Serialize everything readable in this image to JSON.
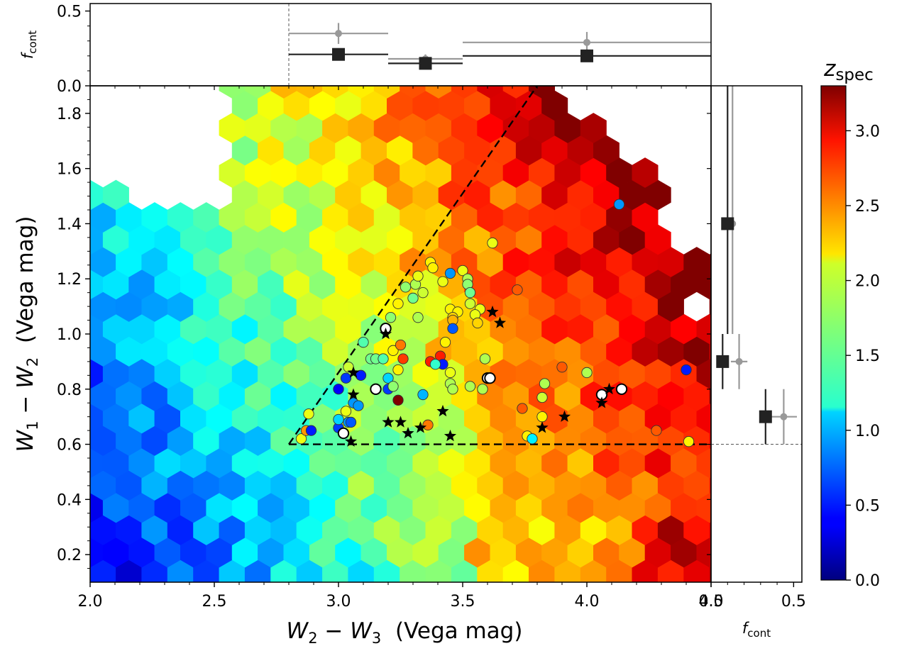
{
  "chart_data": {
    "type": "scatter",
    "main": {
      "xlabel_var_a": "W",
      "xlabel_sub_a": "2",
      "xlabel_minus": " − ",
      "xlabel_var_b": "W",
      "xlabel_sub_b": "3",
      "xlabel_unit": "  (Vega mag)",
      "ylabel_var_a": "W",
      "ylabel_sub_a": "1",
      "ylabel_minus": " − ",
      "ylabel_var_b": "W",
      "ylabel_sub_b": "2",
      "ylabel_unit": "  (Vega mag)",
      "xlim": [
        2.0,
        4.5
      ],
      "ylim": [
        0.1,
        1.9
      ],
      "xticks": [
        "2.0",
        "2.5",
        "3.0",
        "3.5",
        "4.0",
        "4.5"
      ],
      "yticks": [
        "0.2",
        "0.4",
        "0.6",
        "0.8",
        "1.0",
        "1.2",
        "1.4",
        "1.6",
        "1.8"
      ],
      "selection_wedge": [
        [
          2.8,
          0.6
        ],
        [
          4.5,
          0.6
        ],
        [
          2.8,
          0.6
        ],
        [
          3.8,
          1.9
        ]
      ],
      "hexbin_note_colorscale": "jet",
      "circles": [
        [
          2.85,
          0.62,
          2.0
        ],
        [
          2.87,
          0.65,
          2.4
        ],
        [
          2.88,
          0.71,
          2.0
        ],
        [
          2.89,
          0.65,
          0.5
        ],
        [
          3.0,
          0.66,
          0.6
        ],
        [
          3.0,
          0.69,
          1.1
        ],
        [
          3.02,
          0.64,
          -1
        ],
        [
          3.03,
          0.72,
          2.0
        ],
        [
          3.04,
          0.68,
          0.9
        ],
        [
          3.05,
          0.68,
          0.7
        ],
        [
          3.06,
          0.75,
          0.9
        ],
        [
          3.08,
          0.74,
          0.9
        ],
        [
          3.0,
          0.8,
          0.4
        ],
        [
          3.03,
          0.84,
          0.6
        ],
        [
          3.09,
          0.85,
          0.5
        ],
        [
          3.04,
          0.88,
          1.9
        ],
        [
          3.1,
          0.97,
          1.5
        ],
        [
          3.13,
          0.91,
          1.6
        ],
        [
          3.15,
          0.91,
          1.6
        ],
        [
          3.18,
          0.91,
          1.5
        ],
        [
          3.2,
          0.84,
          1.1
        ],
        [
          3.15,
          0.8,
          -1
        ],
        [
          3.2,
          0.8,
          0.6
        ],
        [
          3.22,
          0.81,
          1.7
        ],
        [
          3.19,
          1.02,
          -1
        ],
        [
          3.22,
          0.94,
          2.1
        ],
        [
          3.25,
          0.96,
          2.5
        ],
        [
          3.26,
          0.91,
          2.7
        ],
        [
          3.24,
          0.87,
          2.1
        ],
        [
          3.21,
          1.06,
          1.7
        ],
        [
          3.24,
          1.11,
          2.1
        ],
        [
          3.27,
          1.17,
          1.7
        ],
        [
          3.3,
          1.13,
          1.6
        ],
        [
          3.32,
          1.06,
          1.8
        ],
        [
          3.31,
          1.18,
          1.8
        ],
        [
          3.32,
          1.21,
          2.0
        ],
        [
          3.34,
          1.15,
          1.9
        ],
        [
          3.37,
          1.26,
          2.1
        ],
        [
          3.38,
          1.24,
          2.1
        ],
        [
          3.42,
          1.19,
          2.0
        ],
        [
          3.45,
          1.22,
          0.9
        ],
        [
          3.5,
          1.23,
          2.0
        ],
        [
          3.52,
          1.2,
          1.8
        ],
        [
          3.52,
          1.18,
          1.7
        ],
        [
          3.53,
          1.15,
          1.6
        ],
        [
          3.53,
          1.11,
          1.9
        ],
        [
          3.57,
          1.09,
          2.0
        ],
        [
          3.55,
          1.07,
          2.0
        ],
        [
          3.45,
          1.09,
          2.1
        ],
        [
          3.48,
          1.08,
          2.1
        ],
        [
          3.46,
          1.06,
          2.2
        ],
        [
          3.46,
          1.05,
          2.3
        ],
        [
          3.46,
          1.02,
          0.7
        ],
        [
          3.43,
          0.97,
          2.1
        ],
        [
          3.41,
          0.92,
          2.8
        ],
        [
          3.42,
          0.89,
          0.5
        ],
        [
          3.37,
          0.9,
          2.8
        ],
        [
          3.39,
          0.89,
          1.4
        ],
        [
          3.45,
          0.86,
          2.0
        ],
        [
          3.45,
          0.82,
          1.8
        ],
        [
          3.46,
          0.8,
          1.8
        ],
        [
          3.53,
          0.81,
          1.8
        ],
        [
          3.58,
          0.8,
          1.8
        ],
        [
          3.6,
          0.84,
          -1
        ],
        [
          3.61,
          0.84,
          -1
        ],
        [
          3.34,
          0.78,
          1.0
        ],
        [
          3.24,
          0.76,
          3.3
        ],
        [
          3.36,
          0.67,
          2.5
        ],
        [
          3.59,
          0.91,
          1.8
        ],
        [
          3.56,
          1.04,
          2.2
        ],
        [
          3.62,
          1.33,
          2.0
        ],
        [
          3.72,
          1.16,
          2.6
        ],
        [
          3.76,
          0.63,
          2.1
        ],
        [
          3.78,
          0.62,
          1.2
        ],
        [
          3.74,
          0.73,
          2.6
        ],
        [
          3.82,
          0.7,
          2.1
        ],
        [
          3.82,
          0.77,
          1.9
        ],
        [
          3.83,
          0.82,
          1.8
        ],
        [
          3.9,
          0.88,
          2.6
        ],
        [
          4.06,
          0.78,
          -1
        ],
        [
          4.14,
          0.8,
          -1
        ],
        [
          4.0,
          0.86,
          1.8
        ],
        [
          4.13,
          1.47,
          0.9
        ],
        [
          4.28,
          0.65,
          2.6
        ],
        [
          4.4,
          0.87,
          0.5
        ],
        [
          4.41,
          0.61,
          2.1
        ]
      ],
      "stars": [
        [
          3.06,
          0.86
        ],
        [
          3.06,
          0.78
        ],
        [
          3.05,
          0.61
        ],
        [
          3.19,
          1.0
        ],
        [
          3.2,
          0.68
        ],
        [
          3.25,
          0.68
        ],
        [
          3.28,
          0.64
        ],
        [
          3.33,
          0.66
        ],
        [
          3.42,
          0.72
        ],
        [
          3.45,
          0.63
        ],
        [
          3.62,
          1.08
        ],
        [
          3.65,
          1.04
        ],
        [
          3.82,
          0.66
        ],
        [
          3.91,
          0.7
        ],
        [
          4.06,
          0.75
        ],
        [
          4.09,
          0.8
        ]
      ]
    },
    "top_panel": {
      "ylabel": "f",
      "ylabel_sub": "cont",
      "ylim": [
        0.0,
        0.55
      ],
      "yticks": [
        "0.0",
        "0.5"
      ],
      "threshold_x": 2.8,
      "dark_squares": [
        {
          "x": 3.0,
          "y": 0.21,
          "xmin": 2.8,
          "xmax": 3.2,
          "yerr": 0.0
        },
        {
          "x": 3.35,
          "y": 0.15,
          "xmin": 3.2,
          "xmax": 3.5,
          "yerr": 0.0
        },
        {
          "x": 4.0,
          "y": 0.2,
          "xmin": 3.5,
          "xmax": 4.5,
          "yerr": 0.0
        }
      ],
      "gray_points": [
        {
          "x": 3.0,
          "y": 0.35,
          "xmin": 2.8,
          "xmax": 3.2,
          "yerr": 0.07
        },
        {
          "x": 3.35,
          "y": 0.18,
          "xmin": 3.2,
          "xmax": 3.5,
          "yerr": 0.03
        },
        {
          "x": 4.0,
          "y": 0.29,
          "xmin": 3.5,
          "xmax": 4.5,
          "yerr": 0.07
        }
      ]
    },
    "right_panel": {
      "xlabel": "f",
      "xlabel_sub": "cont",
      "xlim": [
        0.0,
        0.55
      ],
      "xticks": [
        "0.0",
        "0.5"
      ],
      "threshold_y": 0.6,
      "dark_squares": [
        {
          "x": 0.07,
          "y": 0.9,
          "ymin": 0.8,
          "ymax": 1.0
        },
        {
          "x": 0.33,
          "y": 0.7,
          "ymin": 0.6,
          "ymax": 0.8
        },
        {
          "x": 0.1,
          "y": 1.4,
          "ymin": 1.0,
          "ymax": 1.9
        }
      ],
      "gray_points": [
        {
          "x": 0.17,
          "y": 0.9,
          "ymin": 0.8,
          "ymax": 1.0,
          "xerr": 0.05
        },
        {
          "x": 0.44,
          "y": 0.7,
          "ymin": 0.6,
          "ymax": 0.8,
          "xerr": 0.08
        },
        {
          "x": 0.13,
          "y": 1.4,
          "ymin": 1.0,
          "ymax": 1.9,
          "xerr": 0.02
        }
      ]
    },
    "colorbar": {
      "label": "z",
      "label_sub": "spec",
      "range": [
        0.0,
        3.3
      ],
      "ticks": [
        "0.0",
        "0.5",
        "1.0",
        "1.5",
        "2.0",
        "2.5",
        "3.0"
      ],
      "colormap": "jet"
    }
  }
}
